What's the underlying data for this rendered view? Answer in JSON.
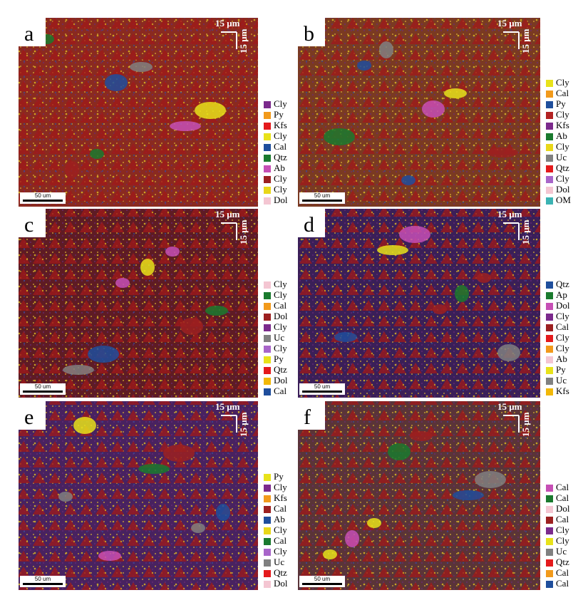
{
  "panels": [
    {
      "label": "a",
      "scale_h": "15 μm",
      "scale_v": "15 μm",
      "scale_bar": "50 um",
      "legend": [
        {
          "name": "Cly",
          "color": "#7b2a8c"
        },
        {
          "name": "Py",
          "color": "#f29a1b"
        },
        {
          "name": "Kfs",
          "color": "#e41a1c"
        },
        {
          "name": "Cly",
          "color": "#e8e21a"
        },
        {
          "name": "Cal",
          "color": "#1f4e9c"
        },
        {
          "name": "Qtz",
          "color": "#1a7a2e"
        },
        {
          "name": "Ab",
          "color": "#c64fb5"
        },
        {
          "name": "Cly",
          "color": "#9c2020"
        },
        {
          "name": "Cly",
          "color": "#e9d719"
        },
        {
          "name": "Dol",
          "color": "#f4c6d2"
        }
      ]
    },
    {
      "label": "b",
      "scale_h": "15 μm",
      "scale_v": "15 μm",
      "scale_bar": "50 um",
      "legend": [
        {
          "name": "Cly",
          "color": "#e8e21a"
        },
        {
          "name": "Cal",
          "color": "#f29a1b"
        },
        {
          "name": "Py",
          "color": "#1f4e9c"
        },
        {
          "name": "Cly",
          "color": "#b22222"
        },
        {
          "name": "Kfs",
          "color": "#7b2a8c"
        },
        {
          "name": "Ab",
          "color": "#1a7a2e"
        },
        {
          "name": "Cly",
          "color": "#e9d719"
        },
        {
          "name": "Uc",
          "color": "#808080"
        },
        {
          "name": "Qtz",
          "color": "#e41a1c"
        },
        {
          "name": "Cly",
          "color": "#a865c9"
        },
        {
          "name": "Dol",
          "color": "#f4c6d2"
        },
        {
          "name": "OM",
          "color": "#3bb3b3"
        }
      ]
    },
    {
      "label": "c",
      "scale_h": "15 μm",
      "scale_v": "15 μm",
      "scale_bar": "50 um",
      "legend": [
        {
          "name": "Cly",
          "color": "#f4c6d2"
        },
        {
          "name": "Cly",
          "color": "#1a7a2e"
        },
        {
          "name": "Cal",
          "color": "#f29a1b"
        },
        {
          "name": "Dol",
          "color": "#9c2020"
        },
        {
          "name": "Cly",
          "color": "#7b2a8c"
        },
        {
          "name": "Uc",
          "color": "#808080"
        },
        {
          "name": "Cly",
          "color": "#a865c9"
        },
        {
          "name": "Py",
          "color": "#e8e21a"
        },
        {
          "name": "Qtz",
          "color": "#e41a1c"
        },
        {
          "name": "Dol",
          "color": "#f2b807"
        },
        {
          "name": "Cal",
          "color": "#1f4e9c"
        }
      ]
    },
    {
      "label": "d",
      "scale_h": "15 μm",
      "scale_v": "15 μm",
      "scale_bar": "50 um",
      "legend": [
        {
          "name": "Qtz",
          "color": "#1f4e9c"
        },
        {
          "name": "Ap",
          "color": "#1a7a2e"
        },
        {
          "name": "Dol",
          "color": "#c64fb5"
        },
        {
          "name": "Cly",
          "color": "#7b2a8c"
        },
        {
          "name": "Cal",
          "color": "#9c2020"
        },
        {
          "name": "Cly",
          "color": "#e41a1c"
        },
        {
          "name": "Cly",
          "color": "#f29a1b"
        },
        {
          "name": "Ab",
          "color": "#f4c6d2"
        },
        {
          "name": "Py",
          "color": "#e8e21a"
        },
        {
          "name": "Uc",
          "color": "#808080"
        },
        {
          "name": "Kfs",
          "color": "#f2b807"
        }
      ]
    },
    {
      "label": "e",
      "scale_h": "15 μm",
      "scale_v": "15 μm",
      "scale_bar": "50 um",
      "legend": [
        {
          "name": "Py",
          "color": "#e8e21a"
        },
        {
          "name": "Cly",
          "color": "#7b2a8c"
        },
        {
          "name": "Kfs",
          "color": "#f29a1b"
        },
        {
          "name": "Cal",
          "color": "#9c2020"
        },
        {
          "name": "Ab",
          "color": "#1f4e9c"
        },
        {
          "name": "Cly",
          "color": "#e9d719"
        },
        {
          "name": "Cal",
          "color": "#1a7a2e"
        },
        {
          "name": "Cly",
          "color": "#a865c9"
        },
        {
          "name": "Uc",
          "color": "#808080"
        },
        {
          "name": "Qtz",
          "color": "#e41a1c"
        },
        {
          "name": "Dol",
          "color": "#f4c6d2"
        }
      ]
    },
    {
      "label": "f",
      "scale_h": "15 μm",
      "scale_v": "15 μm",
      "scale_bar": "50 um",
      "legend": [
        {
          "name": "Cal",
          "color": "#c64fb5"
        },
        {
          "name": "Cal",
          "color": "#1a7a2e"
        },
        {
          "name": "Dol",
          "color": "#f4c6d2"
        },
        {
          "name": "Cal",
          "color": "#9c2020"
        },
        {
          "name": "Cly",
          "color": "#7b2a8c"
        },
        {
          "name": "Cly",
          "color": "#e8e21a"
        },
        {
          "name": "Uc",
          "color": "#808080"
        },
        {
          "name": "Qtz",
          "color": "#e41a1c"
        },
        {
          "name": "Cal",
          "color": "#f29a1b"
        },
        {
          "name": "Cal",
          "color": "#1f4e9c"
        }
      ]
    }
  ]
}
